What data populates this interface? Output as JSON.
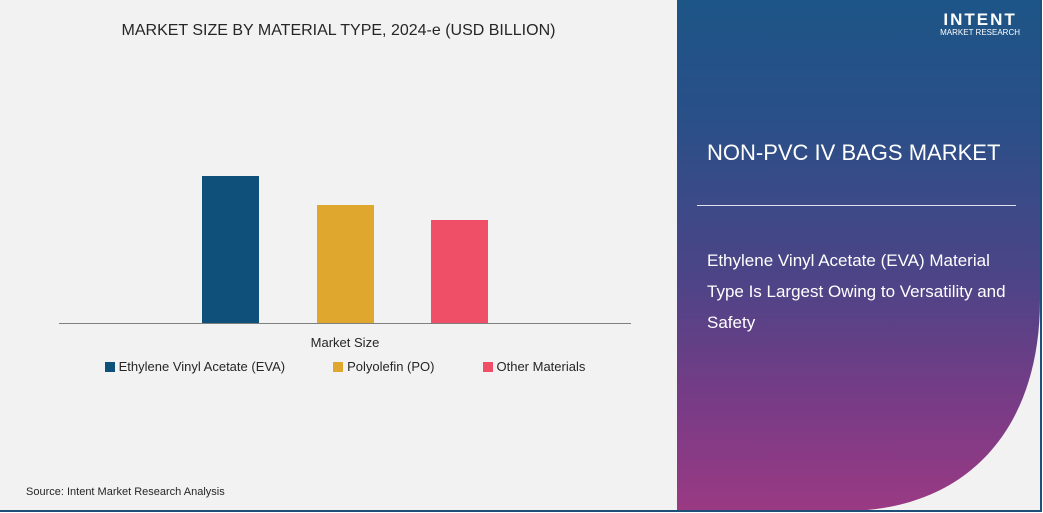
{
  "chart_data": {
    "type": "bar",
    "title": "MARKET SIZE BY MATERIAL TYPE, 2024-e (USD BILLION)",
    "xlabel": "Market Size",
    "categories": [
      "Market Size"
    ],
    "series": [
      {
        "name": "Ethylene Vinyl Acetate (EVA)",
        "values": [
          1.47
        ],
        "color": "#0e507a"
      },
      {
        "name": "Polyolefin (PO)",
        "values": [
          1.18
        ],
        "color": "#e0a72e"
      },
      {
        "name": "Other Materials",
        "values": [
          1.03
        ],
        "color": "#ef4f67"
      }
    ],
    "ylim": [
      0,
      2.5
    ],
    "grid": false,
    "legend": "bottom"
  },
  "source": "Source:  Intent Market Research Analysis",
  "panel": {
    "logo_name": "INTENT",
    "logo_sub": "MARKET RESEARCH",
    "title": "NON-PVC IV BAGS MARKET",
    "text": "Ethylene Vinyl Acetate (EVA) Material Type Is Largest Owing to Versatility and Safety"
  }
}
